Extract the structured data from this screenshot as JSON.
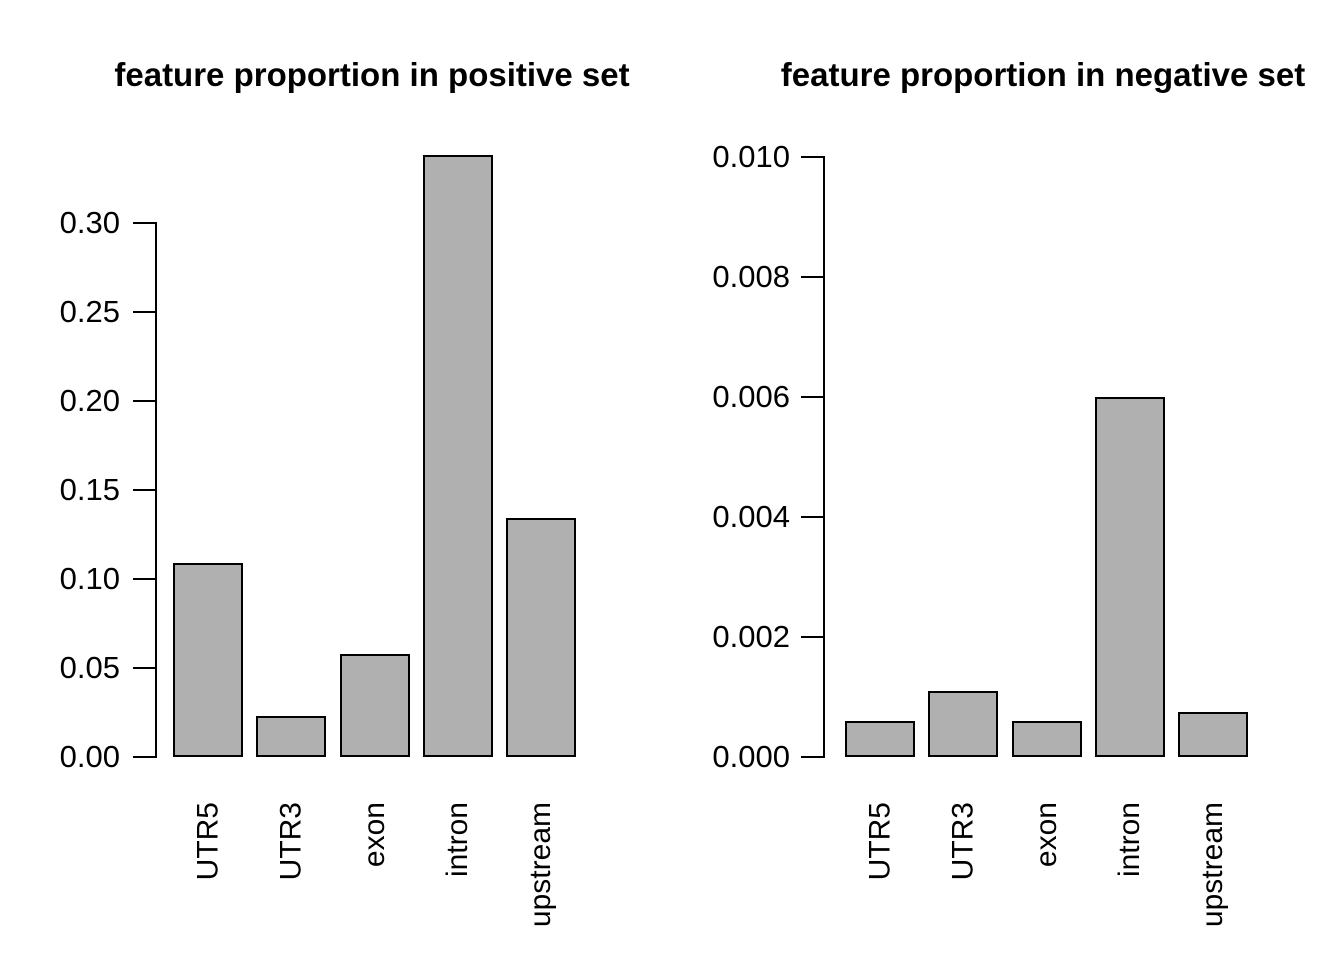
{
  "figure": {
    "background": "#ffffff",
    "text_color": "#000000"
  },
  "chart_data": [
    {
      "type": "bar",
      "title": "feature proportion in positive set",
      "categories": [
        "UTR5",
        "UTR3",
        "exon",
        "intron",
        "upstream"
      ],
      "values": [
        0.109,
        0.023,
        0.058,
        0.338,
        0.134
      ],
      "xlabel": "",
      "ylabel": "",
      "ylim": [
        0,
        0.3
      ],
      "ytick_values": [
        0,
        0.05,
        0.1,
        0.15,
        0.2,
        0.25,
        0.3
      ],
      "ytick_labels": [
        "0.00",
        "0.05",
        "0.10",
        "0.15",
        "0.20",
        "0.25",
        "0.30"
      ],
      "grid": false,
      "legend": null,
      "bar_fill": "#b0b0b0",
      "bar_stroke": "#000000"
    },
    {
      "type": "bar",
      "title": "feature proportion in negative set",
      "categories": [
        "UTR5",
        "UTR3",
        "exon",
        "intron",
        "upstream"
      ],
      "values": [
        0.0006,
        0.0011,
        0.0006,
        0.006,
        0.00075
      ],
      "xlabel": "",
      "ylabel": "",
      "ylim": [
        0,
        0.01
      ],
      "ytick_values": [
        0,
        0.002,
        0.004,
        0.006,
        0.008,
        0.01
      ],
      "ytick_labels": [
        "0.000",
        "0.002",
        "0.004",
        "0.006",
        "0.008",
        "0.010"
      ],
      "grid": false,
      "legend": null,
      "bar_fill": "#b0b0b0",
      "bar_stroke": "#000000"
    }
  ]
}
